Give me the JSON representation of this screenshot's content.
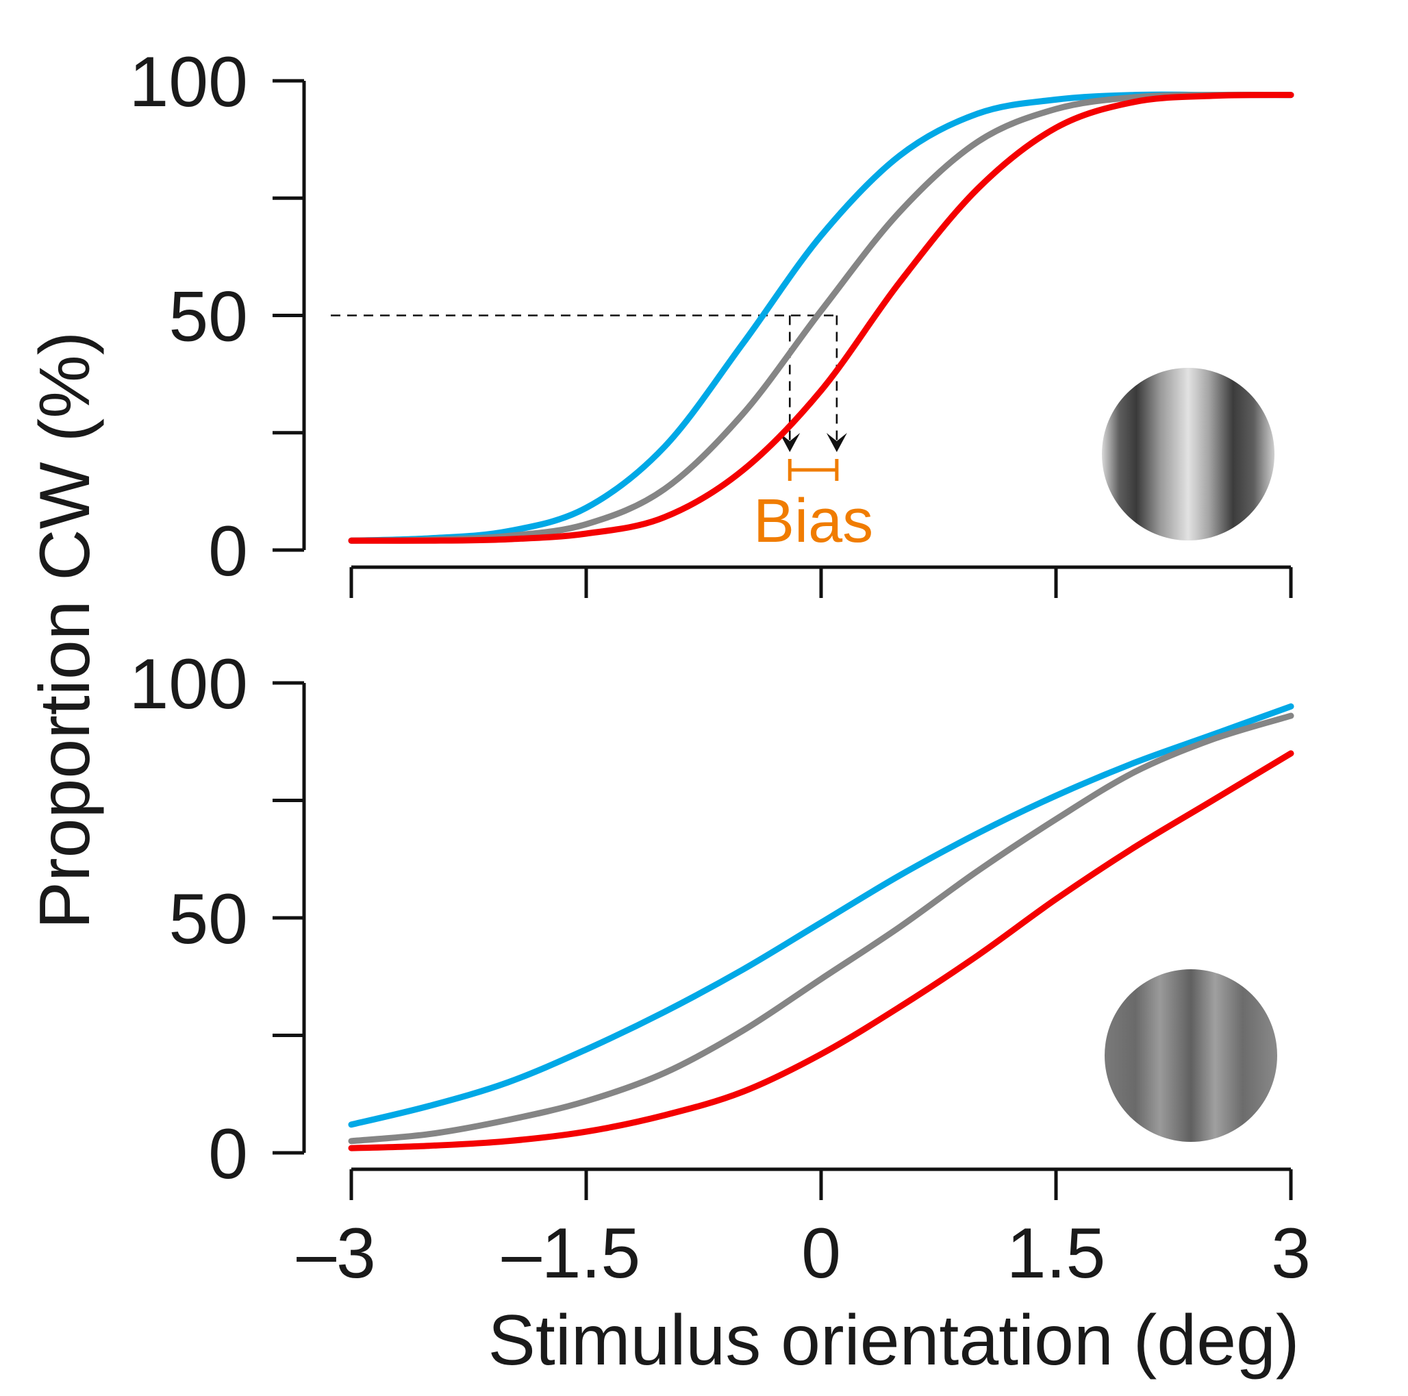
{
  "colors": {
    "cyan": "#00a8e6",
    "gray": "#858585",
    "red": "#f40000",
    "bias": "#f07c00",
    "axis": "#111111"
  },
  "y_axis_title": "Proportion CW (%)",
  "x_axis_title": "Stimulus orientation (deg)",
  "bias_label": "Bias",
  "chart_data": [
    {
      "type": "line",
      "panel": "top",
      "xlim": [
        -3,
        3
      ],
      "ylim": [
        0,
        100
      ],
      "x_ticks": [
        -3,
        -1.5,
        0,
        1.5,
        3
      ],
      "x_tick_labels": [],
      "y_ticks": [
        0,
        25,
        50,
        75,
        100
      ],
      "y_tick_labels": [
        "100",
        "50",
        "0"
      ],
      "y_tick_label_values": [
        100,
        50,
        0
      ],
      "reference_level": 50,
      "bias_points": [
        -0.2,
        0.1
      ],
      "stimulus_icon": "high-contrast-grating-icon",
      "series": [
        {
          "color": "#00a8e6",
          "x": [
            -3,
            -2.5,
            -2,
            -1.5,
            -1,
            -0.5,
            0,
            0.5,
            1,
            1.5,
            2,
            2.5,
            3
          ],
          "y": [
            2,
            2.5,
            4,
            9,
            22,
            44,
            67,
            84,
            93,
            96,
            97,
            97,
            97
          ]
        },
        {
          "color": "#858585",
          "x": [
            -3,
            -2.5,
            -2,
            -1.5,
            -1,
            -0.5,
            0,
            0.5,
            1,
            1.5,
            2,
            2.5,
            3
          ],
          "y": [
            2,
            2.2,
            3,
            5.5,
            13,
            29,
            51,
            72,
            87,
            94,
            96.5,
            97,
            97
          ]
        },
        {
          "color": "#f40000",
          "x": [
            -3,
            -2.5,
            -2,
            -1.5,
            -1,
            -0.5,
            0,
            0.5,
            1,
            1.5,
            2,
            2.5,
            3
          ],
          "y": [
            2,
            2,
            2.3,
            3.5,
            7,
            17,
            34,
            57,
            77,
            90,
            95.5,
            96.8,
            97
          ]
        }
      ]
    },
    {
      "type": "line",
      "panel": "bottom",
      "xlim": [
        -3,
        3
      ],
      "ylim": [
        0,
        100
      ],
      "x_ticks": [
        -3,
        -1.5,
        0,
        1.5,
        3
      ],
      "x_tick_labels": [
        "–3",
        "–1.5",
        "0",
        "1.5",
        "3"
      ],
      "y_ticks": [
        0,
        25,
        50,
        75,
        100
      ],
      "y_tick_labels": [
        "100",
        "50",
        "0"
      ],
      "y_tick_label_values": [
        100,
        50,
        0
      ],
      "stimulus_icon": "low-contrast-grating-icon",
      "series": [
        {
          "color": "#00a8e6",
          "x": [
            -3,
            -2.5,
            -2,
            -1.5,
            -1,
            -0.5,
            0,
            0.5,
            1,
            1.5,
            2,
            2.5,
            3
          ],
          "y": [
            6,
            10,
            15,
            22,
            30,
            39,
            49,
            59,
            68,
            76,
            83,
            89,
            95
          ]
        },
        {
          "color": "#858585",
          "x": [
            -3,
            -2.5,
            -2,
            -1.5,
            -1,
            -0.5,
            0,
            0.5,
            1,
            1.5,
            2,
            2.5,
            3
          ],
          "y": [
            2.5,
            4,
            7,
            11,
            17,
            26,
            37,
            48,
            60,
            71,
            81,
            88,
            93
          ]
        },
        {
          "color": "#f40000",
          "x": [
            -3,
            -2.5,
            -2,
            -1.5,
            -1,
            -0.5,
            0,
            0.5,
            1,
            1.5,
            2,
            2.5,
            3
          ],
          "y": [
            1,
            1.5,
            2.5,
            4.5,
            8,
            13,
            21,
            31,
            42,
            54,
            65,
            75,
            85
          ]
        }
      ]
    }
  ]
}
